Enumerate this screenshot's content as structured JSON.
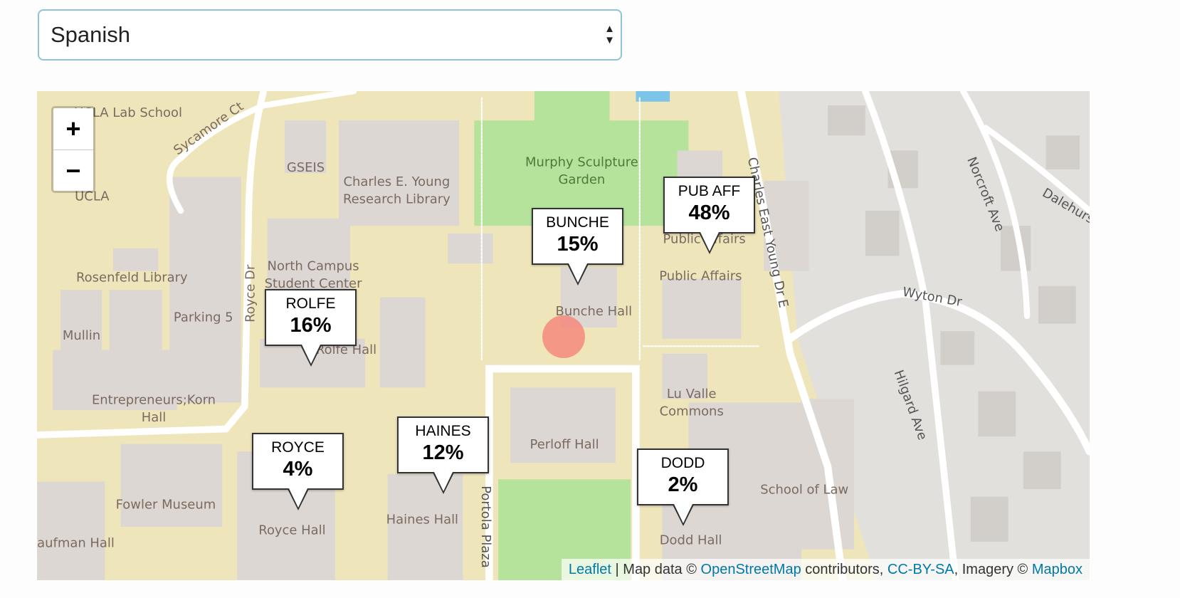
{
  "language_select": {
    "value": "Spanish"
  },
  "map": {
    "zoom_in": "+",
    "zoom_out": "−",
    "labels": [
      "UCLA Lab School",
      "Sycamore Ct",
      "GSEIS",
      "Charles E. Young",
      "Research Library",
      "Murphy Sculpture",
      "Garden",
      "UCLA",
      "Rosenfeld Library",
      "North Campus",
      "Student Center",
      "Royce Dr",
      "Parking 5",
      "Mullin",
      "Rolfe Hall",
      "Entrepreneurs;Korn",
      "Hall",
      "Fowler Museum",
      "Royce Hall",
      "Haines Hall",
      "Portola Plaza",
      "Perloff Hall",
      "Bunche Hall",
      "Public Affairs",
      "Public Affairs",
      "Charles East Young Dr E",
      "Lu Valle",
      "Commons",
      "Wyton Dr",
      "Dodd Hall",
      "School of Law",
      "Hilgard Ave",
      "Norcroft Ave",
      "Dalehurst",
      "Kaufman Hall"
    ],
    "markers": [
      {
        "name": "BUNCHE",
        "percent": "15%"
      },
      {
        "name": "PUB AFF",
        "percent": "48%"
      },
      {
        "name": "ROLFE",
        "percent": "16%"
      },
      {
        "name": "ROYCE",
        "percent": "4%"
      },
      {
        "name": "HAINES",
        "percent": "12%"
      },
      {
        "name": "DODD",
        "percent": "2%"
      }
    ],
    "highlight_color": "#f58a7c",
    "attribution": {
      "leaflet": "Leaflet",
      "sep": " | Map data © ",
      "osm": "OpenStreetMap",
      "contrib": " contributors, ",
      "license": "CC-BY-SA",
      "imagery": ", Imagery © ",
      "mapbox": "Mapbox"
    }
  }
}
